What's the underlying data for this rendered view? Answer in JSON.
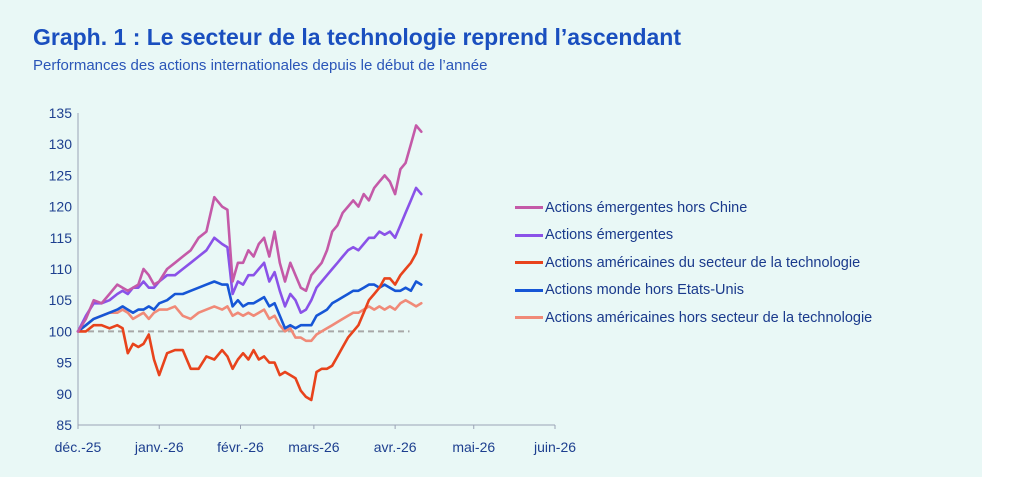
{
  "header": {
    "title": "Graph. 1 : Le secteur de la technologie reprend l’ascendant",
    "subtitle": "Performances des actions internationales depuis le début de l’année"
  },
  "chart_data": {
    "type": "line",
    "title": "Graph. 1 : Le secteur de la technologie reprend l’ascendant",
    "subtitle": "Performances des actions internationales depuis le début de l’année",
    "xlabel": "",
    "ylabel": "",
    "x_ticks": [
      "déc.-25",
      "janv.-26",
      "févr.-26",
      "mars-26",
      "avr.-26",
      "mai-26",
      "juin-26"
    ],
    "x_tick_days": [
      0,
      31,
      62,
      90,
      121,
      151,
      182
    ],
    "ylim": [
      85,
      135
    ],
    "y_ticks": [
      85,
      90,
      95,
      100,
      105,
      110,
      115,
      120,
      125,
      130,
      135
    ],
    "baseline": 100,
    "grid": false,
    "legend_position": "right",
    "x_unit": "days since 1 Dec 2025",
    "series": [
      {
        "name": "Actions émergentes hors Chine",
        "color": "#c45aa8",
        "x": [
          0,
          3,
          6,
          9,
          12,
          15,
          17,
          19,
          21,
          23,
          25,
          27,
          29,
          31,
          34,
          37,
          40,
          43,
          46,
          49,
          52,
          55,
          57,
          59,
          61,
          63,
          65,
          67,
          69,
          71,
          73,
          75,
          77,
          79,
          81,
          83,
          85,
          87,
          89,
          91,
          93,
          95,
          97,
          99,
          101,
          103,
          105,
          107,
          109,
          111,
          113,
          115,
          117,
          119,
          121,
          123,
          125,
          127,
          129,
          131
        ],
        "values": [
          100,
          102,
          105,
          104.5,
          106,
          107.5,
          107,
          106.5,
          107,
          107.5,
          110,
          109,
          107.5,
          108,
          110,
          111,
          112,
          113,
          115,
          116,
          121.5,
          120,
          119.5,
          108,
          111,
          111,
          113,
          112,
          114,
          115,
          112,
          116,
          111,
          108,
          111,
          109,
          107,
          106.5,
          109,
          110,
          111,
          113,
          116,
          117,
          119,
          120,
          121,
          120,
          122,
          121,
          123,
          124,
          125,
          124,
          122,
          126,
          127,
          130,
          133,
          132
        ]
      },
      {
        "name": "Actions émergentes",
        "color": "#8a52e8",
        "x": [
          0,
          3,
          6,
          9,
          12,
          15,
          17,
          19,
          21,
          23,
          25,
          27,
          29,
          31,
          34,
          37,
          40,
          43,
          46,
          49,
          52,
          55,
          57,
          59,
          61,
          63,
          65,
          67,
          69,
          71,
          73,
          75,
          77,
          79,
          81,
          83,
          85,
          87,
          89,
          91,
          93,
          95,
          97,
          99,
          101,
          103,
          105,
          107,
          109,
          111,
          113,
          115,
          117,
          119,
          121,
          123,
          125,
          127,
          129,
          131
        ],
        "values": [
          100,
          102.5,
          104.5,
          104.5,
          105,
          106,
          106.5,
          106,
          107,
          107,
          108,
          107,
          107,
          108,
          109,
          109,
          110,
          111,
          112,
          113,
          115,
          114,
          113.5,
          106,
          108,
          107.5,
          109,
          109,
          110,
          111,
          108,
          109.5,
          106.5,
          104,
          106,
          105,
          103,
          103.5,
          105,
          107,
          108,
          109,
          110,
          111,
          112,
          113,
          113.5,
          113,
          114,
          115,
          115,
          116,
          115.5,
          116,
          115,
          117,
          119,
          121,
          123,
          122
        ]
      },
      {
        "name": "Actions américaines du secteur de la technologie",
        "color": "#e8431c",
        "x": [
          0,
          3,
          6,
          9,
          12,
          15,
          17,
          19,
          21,
          23,
          25,
          27,
          29,
          31,
          34,
          37,
          40,
          43,
          46,
          49,
          52,
          55,
          57,
          59,
          61,
          63,
          65,
          67,
          69,
          71,
          73,
          75,
          77,
          79,
          81,
          83,
          85,
          87,
          89,
          91,
          93,
          95,
          97,
          99,
          101,
          103,
          105,
          107,
          109,
          111,
          113,
          115,
          117,
          119,
          121,
          123,
          125,
          127,
          129,
          131
        ],
        "values": [
          100,
          100,
          101,
          101,
          100.5,
          101,
          100.5,
          96.5,
          98,
          97.5,
          98,
          99.5,
          95.5,
          93,
          96.5,
          97,
          97,
          94,
          94,
          96,
          95.5,
          97,
          96,
          94,
          95.5,
          96.5,
          95.5,
          97,
          95.5,
          96,
          95,
          95,
          93,
          93.5,
          93,
          92.5,
          90.5,
          89.5,
          89,
          93.5,
          94,
          94,
          94.5,
          96,
          97.5,
          99,
          100,
          101,
          103,
          105,
          106,
          107,
          108.5,
          108.5,
          107.5,
          109,
          110,
          111,
          112.5,
          115.5
        ]
      },
      {
        "name": "Actions monde hors Etats-Unis",
        "color": "#1656d6",
        "x": [
          0,
          3,
          6,
          9,
          12,
          15,
          17,
          19,
          21,
          23,
          25,
          27,
          29,
          31,
          34,
          37,
          40,
          43,
          46,
          49,
          52,
          55,
          57,
          59,
          61,
          63,
          65,
          67,
          69,
          71,
          73,
          75,
          77,
          79,
          81,
          83,
          85,
          87,
          89,
          91,
          93,
          95,
          97,
          99,
          101,
          103,
          105,
          107,
          109,
          111,
          113,
          115,
          117,
          119,
          121,
          123,
          125,
          127,
          129,
          131
        ],
        "values": [
          100,
          101,
          102,
          102.5,
          103,
          103.5,
          104,
          103.5,
          103,
          103.5,
          103.5,
          104,
          103.5,
          104.5,
          105,
          106,
          106,
          106.5,
          107,
          107.5,
          108,
          107.5,
          107.5,
          104,
          105,
          104,
          104.5,
          104.5,
          105,
          105.5,
          104,
          104.5,
          102.5,
          100.5,
          101,
          100.5,
          101,
          101,
          101,
          102.5,
          103,
          103.5,
          104.5,
          105,
          105.5,
          106,
          106.5,
          106.5,
          107,
          107.5,
          107.5,
          107,
          107.5,
          107,
          106.5,
          106.5,
          107,
          106.5,
          108,
          107.5
        ]
      },
      {
        "name": "Actions américaines hors secteur de la technologie",
        "color": "#f08a78",
        "x": [
          0,
          3,
          6,
          9,
          12,
          15,
          17,
          19,
          21,
          23,
          25,
          27,
          29,
          31,
          34,
          37,
          40,
          43,
          46,
          49,
          52,
          55,
          57,
          59,
          61,
          63,
          65,
          67,
          69,
          71,
          73,
          75,
          77,
          79,
          81,
          83,
          85,
          87,
          89,
          91,
          93,
          95,
          97,
          99,
          101,
          103,
          105,
          107,
          109,
          111,
          113,
          115,
          117,
          119,
          121,
          123,
          125,
          127,
          129,
          131
        ],
        "values": [
          100,
          101,
          102,
          102.5,
          103,
          103,
          103.5,
          103,
          102,
          102.5,
          103,
          102,
          103,
          103.5,
          103.5,
          104,
          102.5,
          102,
          103,
          103.5,
          104,
          103.5,
          104,
          102.5,
          103,
          102.5,
          103,
          102.5,
          103,
          103.5,
          102,
          102.5,
          101,
          100,
          100.5,
          99,
          99,
          98.5,
          98.5,
          99.5,
          100,
          100.5,
          101,
          101.5,
          102,
          102.5,
          103,
          103,
          103.5,
          104,
          103.5,
          104,
          103.5,
          104,
          103.5,
          104.5,
          105,
          104.5,
          104,
          104.5
        ]
      }
    ]
  }
}
